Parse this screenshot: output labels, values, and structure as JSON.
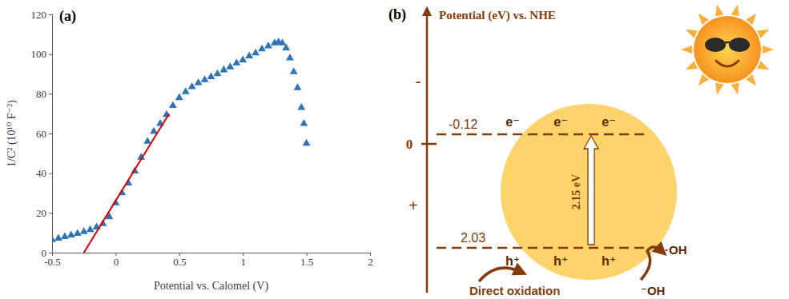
{
  "chart_data": {
    "type": "scatter",
    "label": "(a)",
    "x_label": "Potential vs. Calomel (V)",
    "y_label": "1/C² (10¹⁰ F⁻²)",
    "xlim": [
      -0.5,
      2
    ],
    "xticks": [
      -0.5,
      0,
      0.5,
      1,
      1.5,
      2
    ],
    "ylim": [
      0,
      120
    ],
    "yticks": [
      0,
      20,
      40,
      60,
      80,
      100,
      120
    ],
    "grid": false,
    "series": [
      {
        "type": "scatter",
        "color": "#2e75b6",
        "marker": "triangle",
        "x": [
          -0.5,
          -0.45,
          -0.4,
          -0.35,
          -0.3,
          -0.25,
          -0.2,
          -0.15,
          -0.1,
          -0.05,
          0,
          0.05,
          0.1,
          0.15,
          0.2,
          0.25,
          0.3,
          0.35,
          0.4,
          0.45,
          0.5,
          0.55,
          0.6,
          0.65,
          0.7,
          0.75,
          0.8,
          0.85,
          0.9,
          0.95,
          1.0,
          1.05,
          1.1,
          1.15,
          1.2,
          1.25,
          1.28,
          1.31,
          1.34,
          1.37,
          1.4,
          1.43,
          1.46,
          1.48,
          1.5
        ],
        "values": [
          6.5,
          7.2,
          8,
          8.8,
          9.6,
          10.5,
          11.5,
          12.8,
          14.5,
          18,
          25,
          30,
          35,
          41,
          48,
          56,
          61,
          65,
          69.5,
          74,
          78,
          81,
          83.5,
          85.5,
          87,
          88.5,
          90,
          92,
          93.5,
          95.5,
          97,
          99,
          100.5,
          102.5,
          104,
          105.5,
          106,
          105.5,
          103,
          98,
          91,
          83,
          73,
          65,
          55
        ]
      },
      {
        "type": "line",
        "color": "#e00000",
        "line_style": "solid",
        "x": [
          -0.25,
          0.42
        ],
        "values": [
          0,
          70
        ]
      }
    ]
  },
  "diagram": {
    "label": "(b)",
    "axis": {
      "title": "Potential (eV) vs. NHE",
      "signs": [
        "-",
        "0",
        "+"
      ]
    },
    "levels": [
      {
        "label": "-0.12",
        "carriers": [
          "e⁻",
          "e⁻",
          "e⁻"
        ]
      },
      {
        "label": "2.03",
        "carriers": [
          "h⁺",
          "h⁺",
          "h⁺"
        ]
      }
    ],
    "gap": "2.15 eV",
    "products": {
      "radical": "·OH",
      "reactant": "⁻OH",
      "direct": "Direct oxidation"
    }
  }
}
